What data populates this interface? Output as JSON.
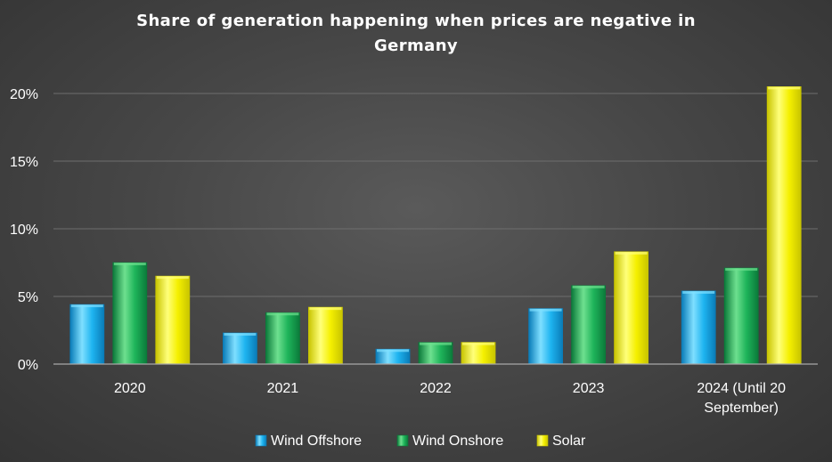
{
  "chart_data": {
    "type": "bar",
    "title": "Share of generation happening when prices are negative in Germany",
    "xlabel": "",
    "ylabel": "",
    "categories": [
      "2020",
      "2021",
      "2022",
      "2023",
      "2024 (Until 20 September)"
    ],
    "category_lines": [
      [
        "2020"
      ],
      [
        "2021"
      ],
      [
        "2022"
      ],
      [
        "2023"
      ],
      [
        "2024 (Until 20",
        "September)"
      ]
    ],
    "series": [
      {
        "name": "Wind Offshore",
        "values": [
          4.4,
          2.3,
          1.1,
          4.1,
          5.4
        ],
        "color": "#1EB4F0",
        "color_light": "#7FDFFF",
        "color_dark": "#0A7CB8"
      },
      {
        "name": "Wind Onshore",
        "values": [
          7.5,
          3.8,
          1.6,
          5.8,
          7.1
        ],
        "color": "#1EB45A",
        "color_light": "#6EE08F",
        "color_dark": "#0B7A3A"
      },
      {
        "name": "Solar",
        "values": [
          6.5,
          4.2,
          1.6,
          8.3,
          20.5
        ],
        "color": "#F5F000",
        "color_light": "#FFFF7A",
        "color_dark": "#C8C400"
      }
    ],
    "ylim": [
      0,
      20
    ],
    "yticks": [
      0,
      5,
      10,
      15,
      20
    ],
    "ytick_labels": [
      "0%",
      "5%",
      "10%",
      "15%",
      "20%"
    ],
    "grid": true,
    "legend": "bottom"
  }
}
